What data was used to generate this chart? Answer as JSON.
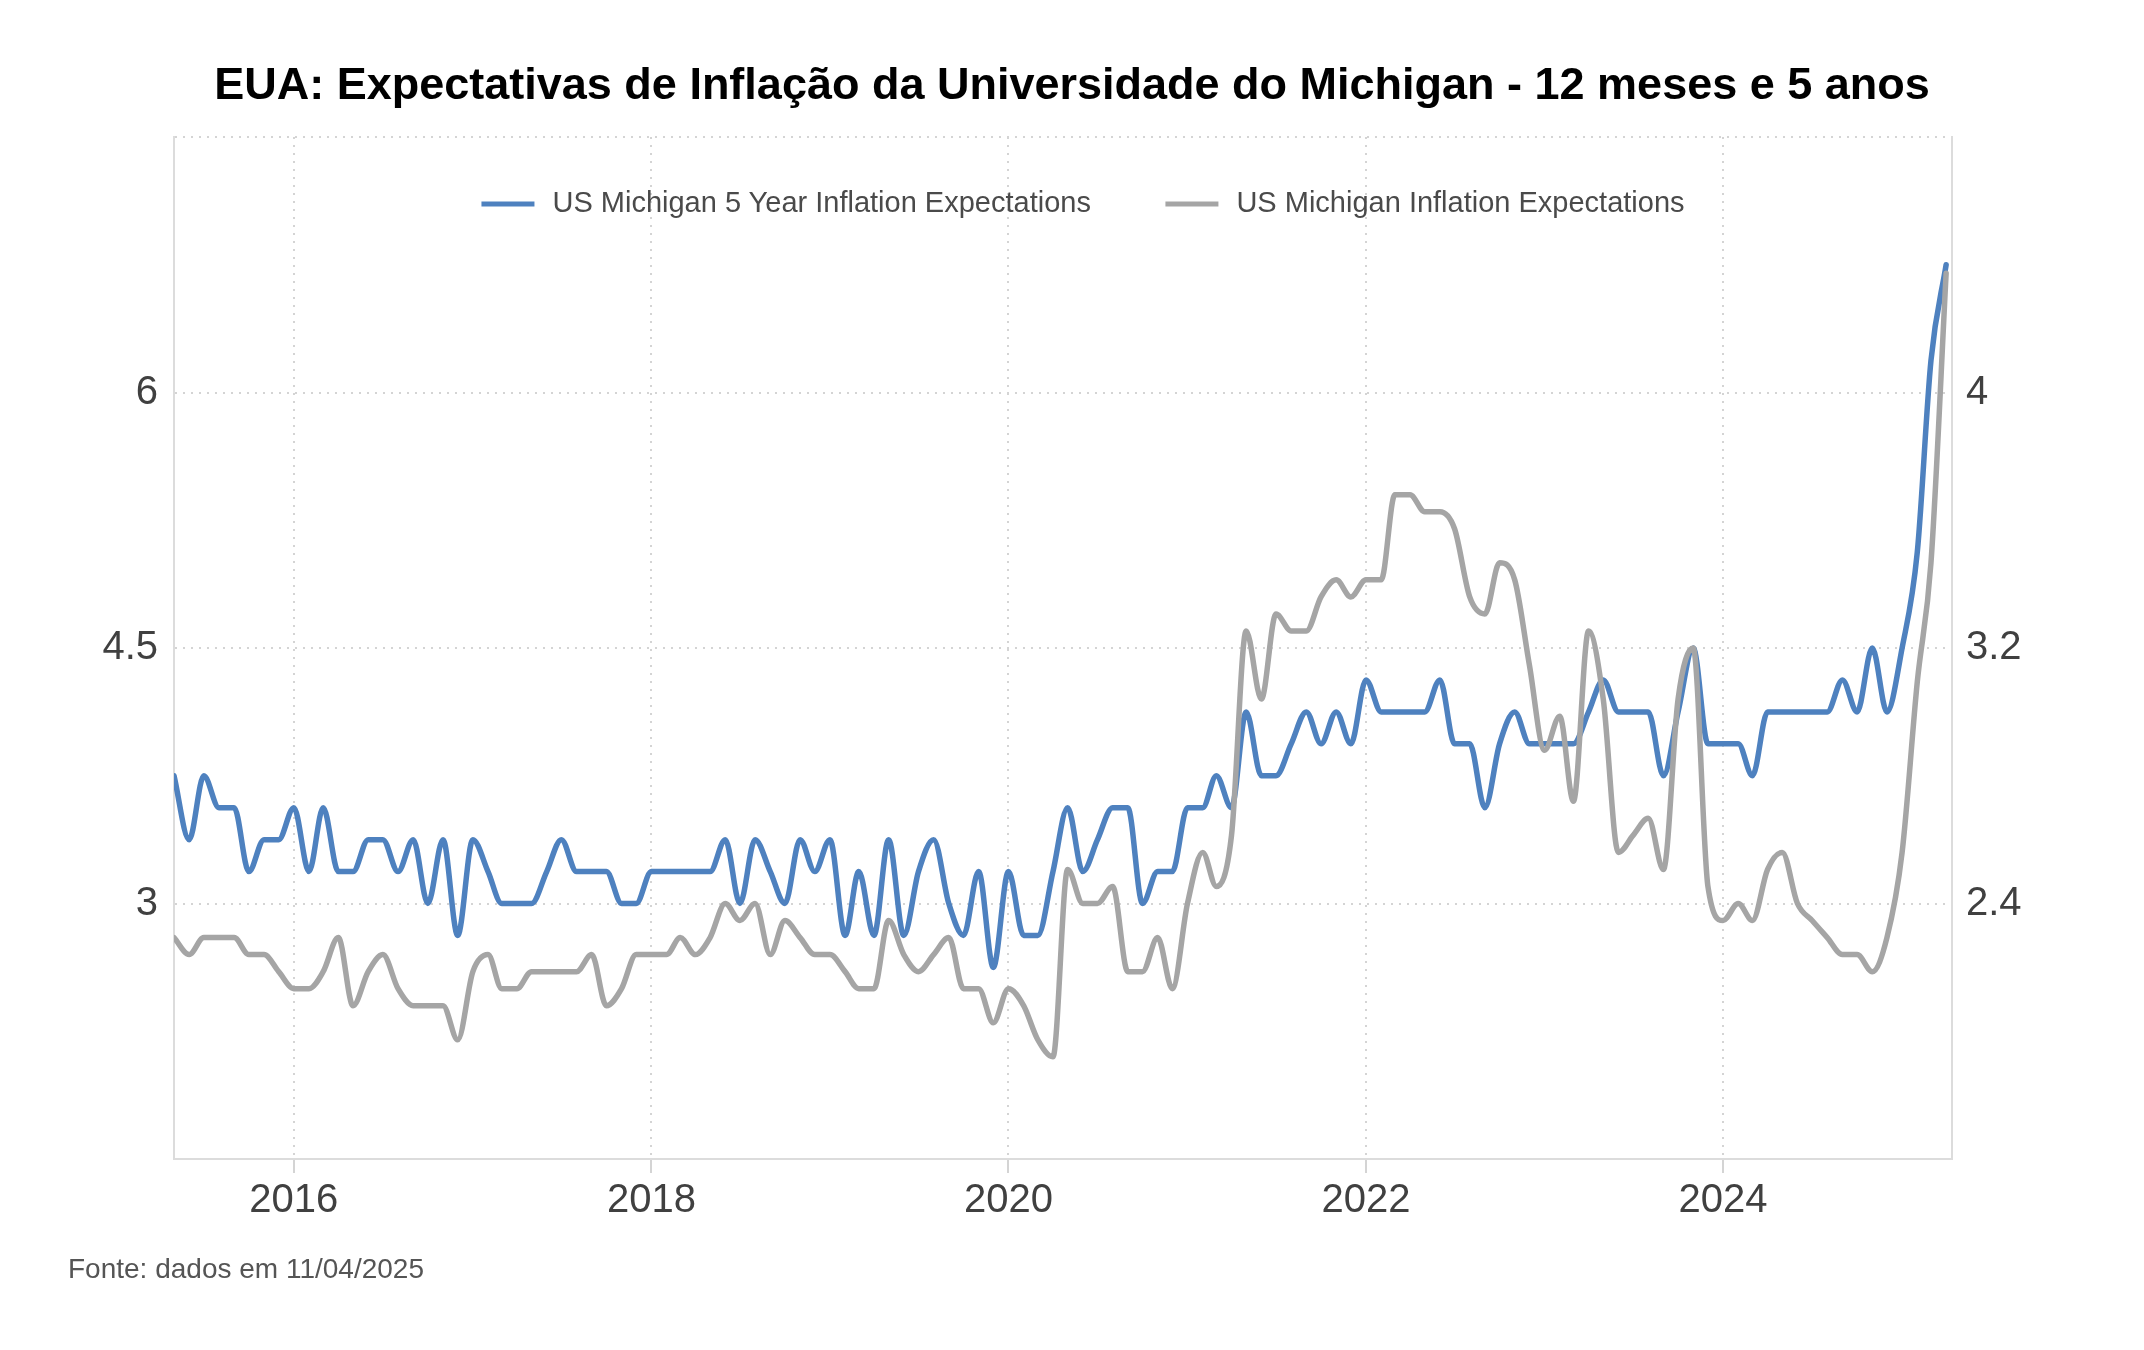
{
  "chart_data": {
    "type": "line",
    "title": "EUA: Expectativas de Inflação da Universidade do Michigan - 12 meses e 5 anos",
    "x": [
      "2015-05",
      "2015-06",
      "2015-07",
      "2015-08",
      "2015-09",
      "2015-10",
      "2015-11",
      "2015-12",
      "2016-01",
      "2016-02",
      "2016-03",
      "2016-04",
      "2016-05",
      "2016-06",
      "2016-07",
      "2016-08",
      "2016-09",
      "2016-10",
      "2016-11",
      "2016-12",
      "2017-01",
      "2017-02",
      "2017-03",
      "2017-04",
      "2017-05",
      "2017-06",
      "2017-07",
      "2017-08",
      "2017-09",
      "2017-10",
      "2017-11",
      "2017-12",
      "2018-01",
      "2018-02",
      "2018-03",
      "2018-04",
      "2018-05",
      "2018-06",
      "2018-07",
      "2018-08",
      "2018-09",
      "2018-10",
      "2018-11",
      "2018-12",
      "2019-01",
      "2019-02",
      "2019-03",
      "2019-04",
      "2019-05",
      "2019-06",
      "2019-07",
      "2019-08",
      "2019-09",
      "2019-10",
      "2019-11",
      "2019-12",
      "2020-01",
      "2020-02",
      "2020-03",
      "2020-04",
      "2020-05",
      "2020-06",
      "2020-07",
      "2020-08",
      "2020-09",
      "2020-10",
      "2020-11",
      "2020-12",
      "2021-01",
      "2021-02",
      "2021-03",
      "2021-04",
      "2021-05",
      "2021-06",
      "2021-07",
      "2021-08",
      "2021-09",
      "2021-10",
      "2021-11",
      "2021-12",
      "2022-01",
      "2022-02",
      "2022-03",
      "2022-04",
      "2022-05",
      "2022-06",
      "2022-07",
      "2022-08",
      "2022-09",
      "2022-10",
      "2022-11",
      "2022-12",
      "2023-01",
      "2023-02",
      "2023-03",
      "2023-04",
      "2023-05",
      "2023-06",
      "2023-07",
      "2023-08",
      "2023-09",
      "2023-10",
      "2023-11",
      "2023-12",
      "2024-01",
      "2024-02",
      "2024-03",
      "2024-04",
      "2024-05",
      "2024-06",
      "2024-07",
      "2024-08",
      "2024-09",
      "2024-10",
      "2024-11",
      "2024-12",
      "2025-01",
      "2025-02",
      "2025-03",
      "2025-04"
    ],
    "series": [
      {
        "name": "US Michigan 5 Year Inflation Expectations",
        "color": "#4e81bf",
        "axis": "y2",
        "values": [
          2.8,
          2.6,
          2.8,
          2.7,
          2.7,
          2.5,
          2.6,
          2.6,
          2.7,
          2.5,
          2.7,
          2.5,
          2.5,
          2.6,
          2.6,
          2.5,
          2.6,
          2.4,
          2.6,
          2.3,
          2.6,
          2.5,
          2.4,
          2.4,
          2.4,
          2.5,
          2.6,
          2.5,
          2.5,
          2.5,
          2.4,
          2.4,
          2.5,
          2.5,
          2.5,
          2.5,
          2.5,
          2.6,
          2.4,
          2.6,
          2.5,
          2.4,
          2.6,
          2.5,
          2.6,
          2.3,
          2.5,
          2.3,
          2.6,
          2.3,
          2.5,
          2.6,
          2.4,
          2.3,
          2.5,
          2.2,
          2.5,
          2.3,
          2.3,
          2.5,
          2.7,
          2.5,
          2.6,
          2.7,
          2.7,
          2.4,
          2.5,
          2.5,
          2.7,
          2.7,
          2.8,
          2.7,
          3.0,
          2.8,
          2.8,
          2.9,
          3.0,
          2.9,
          3.0,
          2.9,
          3.1,
          3.0,
          3.0,
          3.0,
          3.0,
          3.1,
          2.9,
          2.9,
          2.7,
          2.9,
          3.0,
          2.9,
          2.9,
          2.9,
          2.9,
          3.0,
          3.1,
          3.0,
          3.0,
          3.0,
          2.8,
          3.0,
          3.2,
          2.9,
          2.9,
          2.9,
          2.8,
          3.0,
          3.0,
          3.0,
          3.0,
          3.0,
          3.1,
          3.0,
          3.2,
          3.0,
          3.2,
          3.5,
          4.1,
          4.4
        ]
      },
      {
        "name": "US Michigan Inflation Expectations",
        "color": "#a5a5a5",
        "values": [
          2.8,
          2.7,
          2.8,
          2.8,
          2.8,
          2.7,
          2.7,
          2.6,
          2.5,
          2.5,
          2.6,
          2.8,
          2.4,
          2.6,
          2.7,
          2.5,
          2.4,
          2.4,
          2.4,
          2.2,
          2.6,
          2.7,
          2.5,
          2.5,
          2.6,
          2.6,
          2.6,
          2.6,
          2.7,
          2.4,
          2.5,
          2.7,
          2.7,
          2.7,
          2.8,
          2.7,
          2.8,
          3.0,
          2.9,
          3.0,
          2.7,
          2.9,
          2.8,
          2.7,
          2.7,
          2.6,
          2.5,
          2.5,
          2.9,
          2.7,
          2.6,
          2.7,
          2.8,
          2.5,
          2.5,
          2.3,
          2.5,
          2.4,
          2.2,
          2.1,
          3.2,
          3.0,
          3.0,
          3.1,
          2.6,
          2.6,
          2.8,
          2.5,
          3.0,
          3.3,
          3.1,
          3.4,
          4.6,
          4.2,
          4.7,
          4.6,
          4.6,
          4.8,
          4.9,
          4.8,
          4.9,
          4.9,
          5.4,
          5.4,
          5.3,
          5.3,
          5.2,
          4.8,
          4.7,
          5.0,
          4.9,
          4.4,
          3.9,
          4.1,
          3.6,
          4.6,
          4.2,
          3.3,
          3.4,
          3.5,
          3.2,
          4.2,
          4.5,
          3.1,
          2.9,
          3.0,
          2.9,
          3.2,
          3.3,
          3.0,
          2.9,
          2.8,
          2.7,
          2.7,
          2.6,
          2.8,
          3.3,
          4.3,
          5.0,
          6.7
        ]
      }
    ],
    "xlim": [
      "2015-05",
      "2025-04-13"
    ],
    "xticks": [
      "2016",
      "2018",
      "2020",
      "2022",
      "2024"
    ],
    "ylim": [
      1.5,
      7.5
    ],
    "yticks": [
      3,
      4.5,
      6,
      {
        "value": 7.5,
        "label": null
      }
    ],
    "y2lim": [
      1.6,
      4.8
    ],
    "y2ticks": [
      2.4,
      3.2,
      4
    ],
    "grid": true,
    "legend": "top",
    "marker": "none",
    "annotations": [
      "Fonte: dados em 11/04/2025"
    ]
  }
}
